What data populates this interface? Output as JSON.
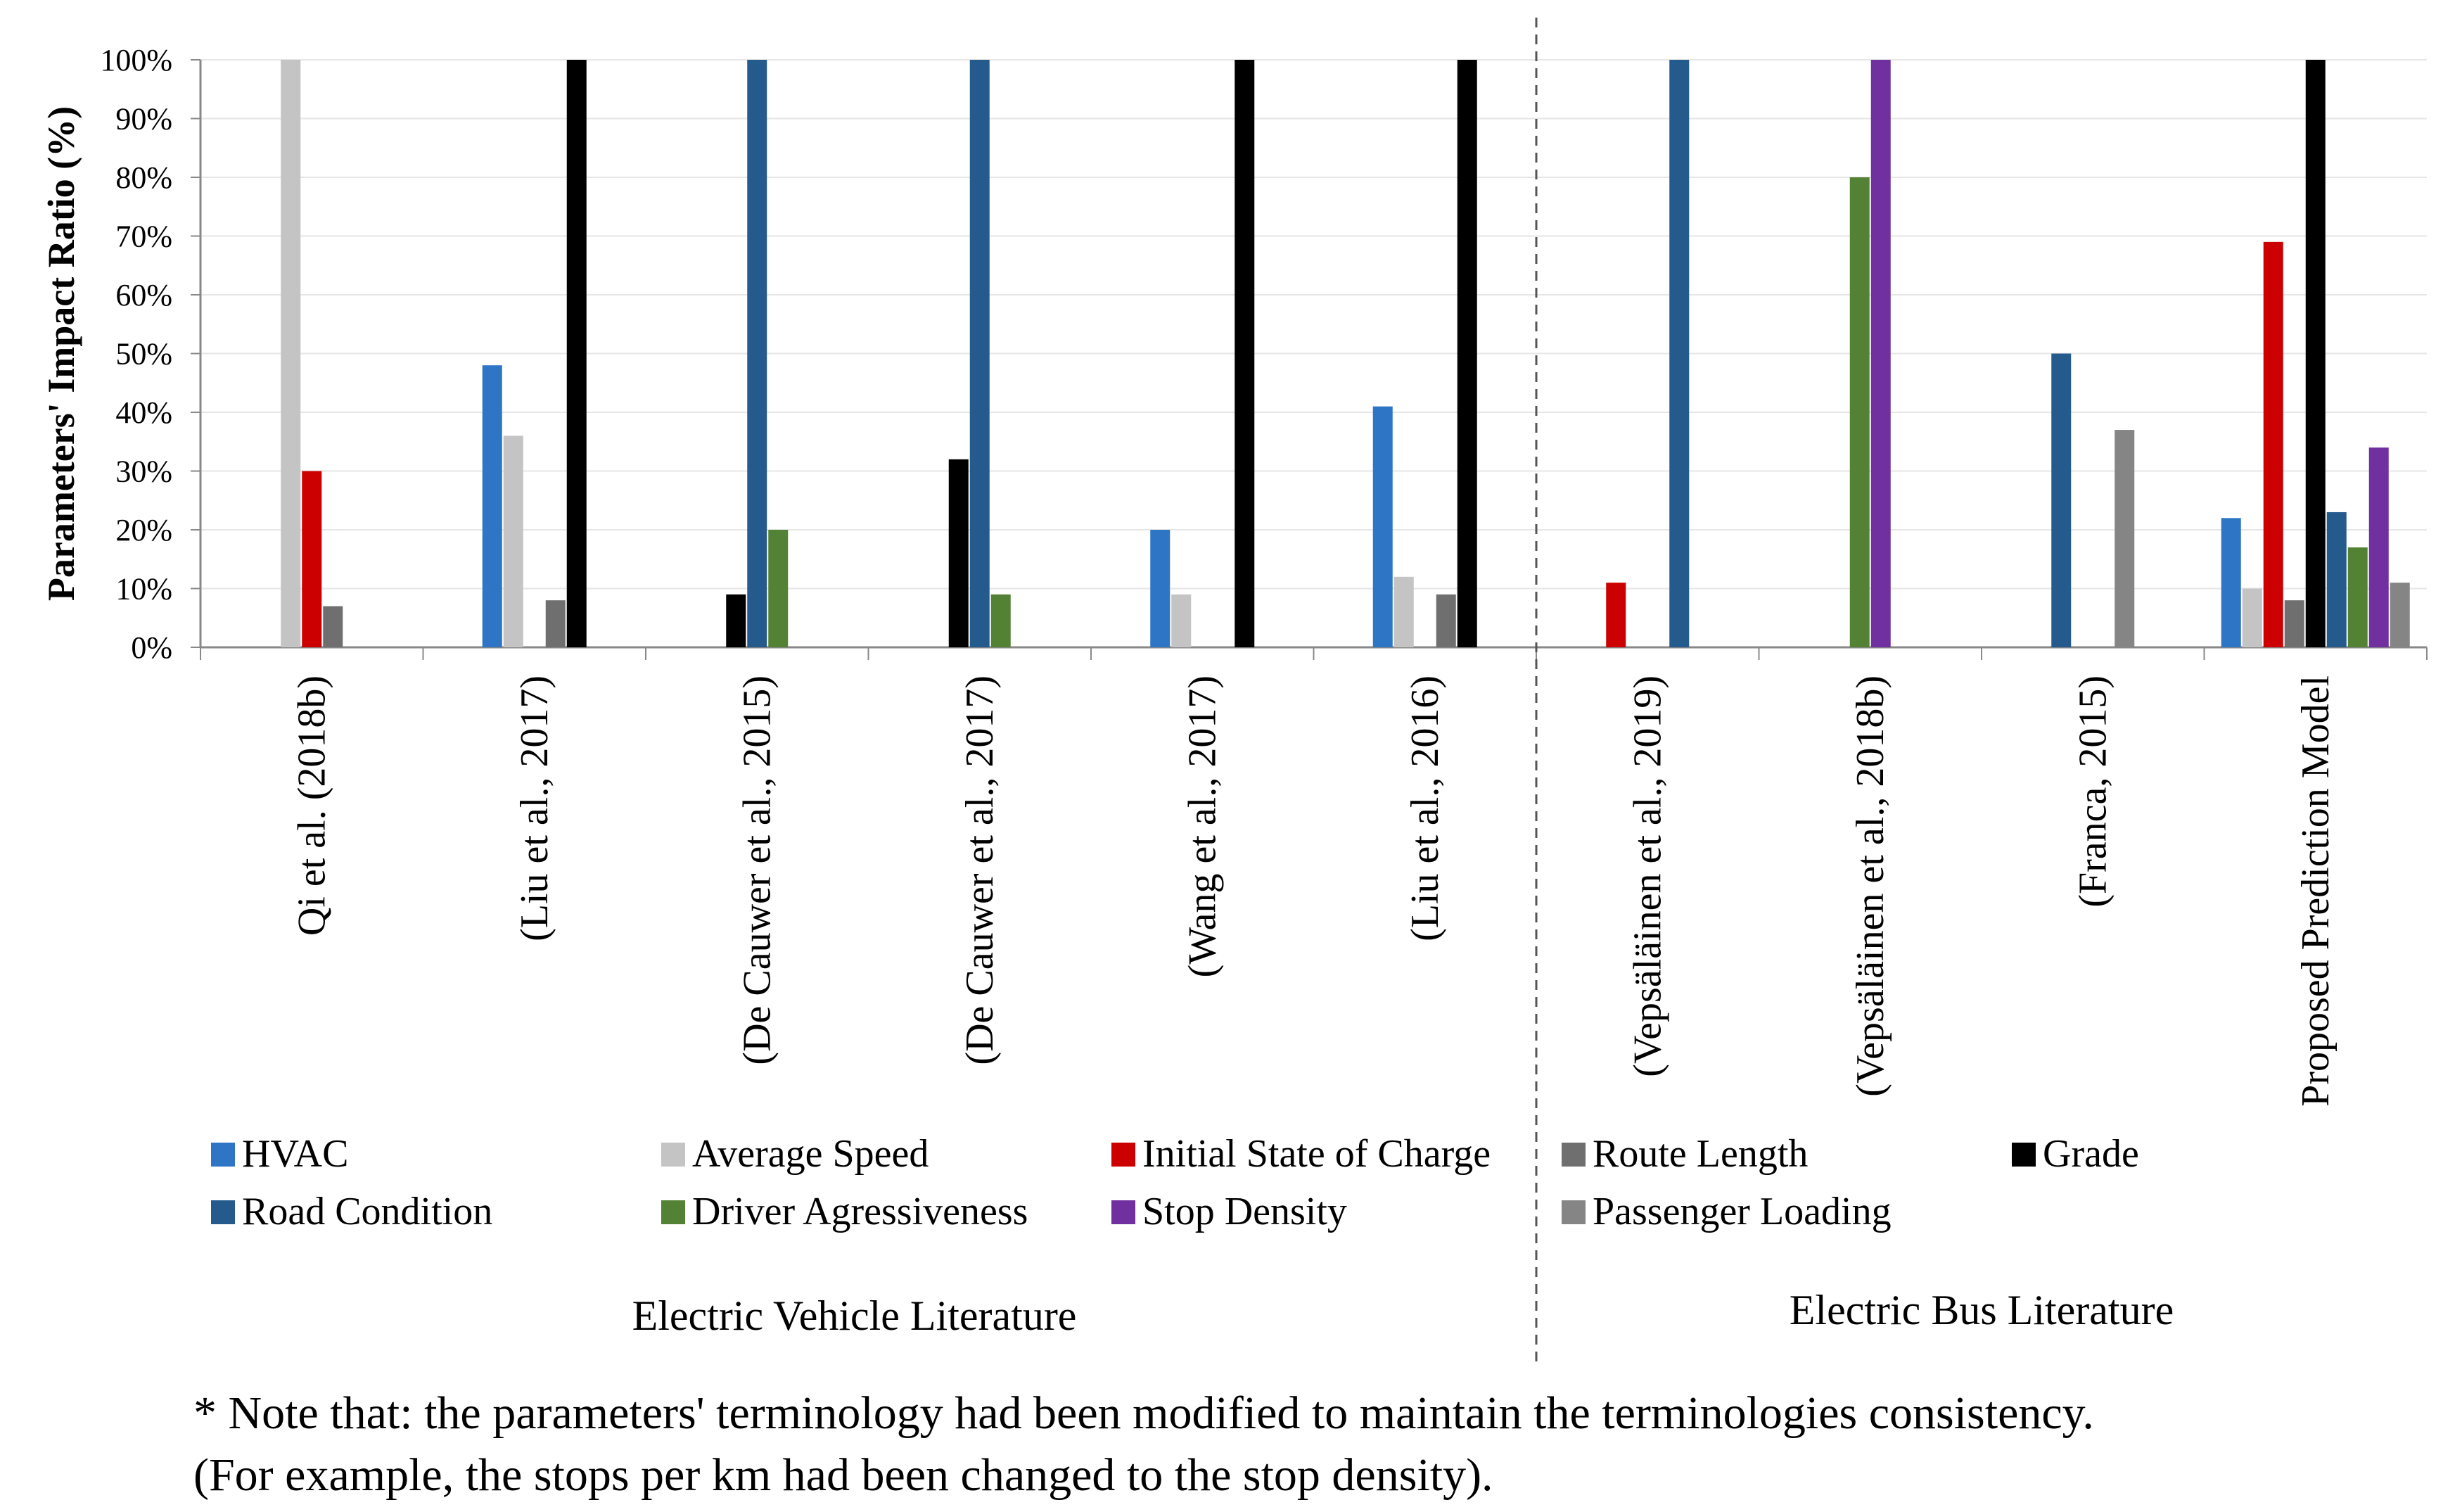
{
  "chart_data": {
    "type": "bar",
    "ylabel": "Parameters' Impact Ratio (%)",
    "ylim": [
      0,
      100
    ],
    "yticks": [
      "0%",
      "10%",
      "20%",
      "30%",
      "40%",
      "50%",
      "60%",
      "70%",
      "80%",
      "90%",
      "100%"
    ],
    "grid": true,
    "categories": [
      "Qi et al. (2018b)",
      "(Liu et al., 2017)",
      "(De Cauwer et al., 2015)",
      "(De Cauwer et al., 2017)",
      "(Wang et al., 2017)",
      "(Liu et al., 2016)",
      "(Vepsäläinen et al., 2019)",
      "(Vepsäläinen et al., 2018b)",
      "(Franca, 2015)",
      "Proposed Prediction Model"
    ],
    "series": [
      {
        "name": "HVAC",
        "color": "#2e75c6",
        "values": [
          0,
          48,
          0,
          0,
          20,
          41,
          0,
          0,
          0,
          22
        ]
      },
      {
        "name": "Average Speed",
        "color": "#c4c4c4",
        "values": [
          100,
          36,
          0,
          0,
          9,
          12,
          0,
          0,
          0,
          10
        ]
      },
      {
        "name": "Initial State of Charge",
        "color": "#cc0000",
        "values": [
          30,
          0,
          0,
          0,
          0,
          0,
          11,
          0,
          0,
          69
        ]
      },
      {
        "name": "Route Length",
        "color": "#6f6f6f",
        "values": [
          7,
          8,
          0,
          0,
          0,
          9,
          0,
          0,
          0,
          8
        ]
      },
      {
        "name": "Grade",
        "color": "#000000",
        "values": [
          0,
          100,
          9,
          32,
          100,
          100,
          0,
          0,
          0,
          100
        ]
      },
      {
        "name": "Road Condition",
        "color": "#245a8c",
        "values": [
          0,
          0,
          100,
          100,
          0,
          0,
          100,
          0,
          50,
          23
        ]
      },
      {
        "name": "Driver Agressiveness",
        "color": "#548235",
        "values": [
          0,
          0,
          20,
          9,
          0,
          0,
          0,
          80,
          0,
          17
        ]
      },
      {
        "name": "Stop Density",
        "color": "#7030a0",
        "values": [
          0,
          0,
          0,
          0,
          0,
          0,
          0,
          100,
          0,
          34
        ]
      },
      {
        "name": "Passenger Loading",
        "color": "#858585",
        "values": [
          0,
          0,
          0,
          0,
          0,
          0,
          0,
          0,
          37,
          11
        ]
      }
    ],
    "legend_order": [
      "HVAC",
      "Average Speed",
      "Initial State of Charge",
      "Route Length",
      "Grade",
      "Road Condition",
      "Driver Agressiveness",
      "Stop Density",
      "Passenger Loading"
    ],
    "groups": [
      {
        "label": "Electric Vehicle Literature",
        "categories": 6
      },
      {
        "label": "Electric Bus Literature",
        "categories": 4
      }
    ]
  },
  "note": {
    "line1": "* Note that: the parameters' terminology had been modified to maintain the terminologies consistency.",
    "line2": "(For example, the stops per km had been changed to the stop density)."
  }
}
